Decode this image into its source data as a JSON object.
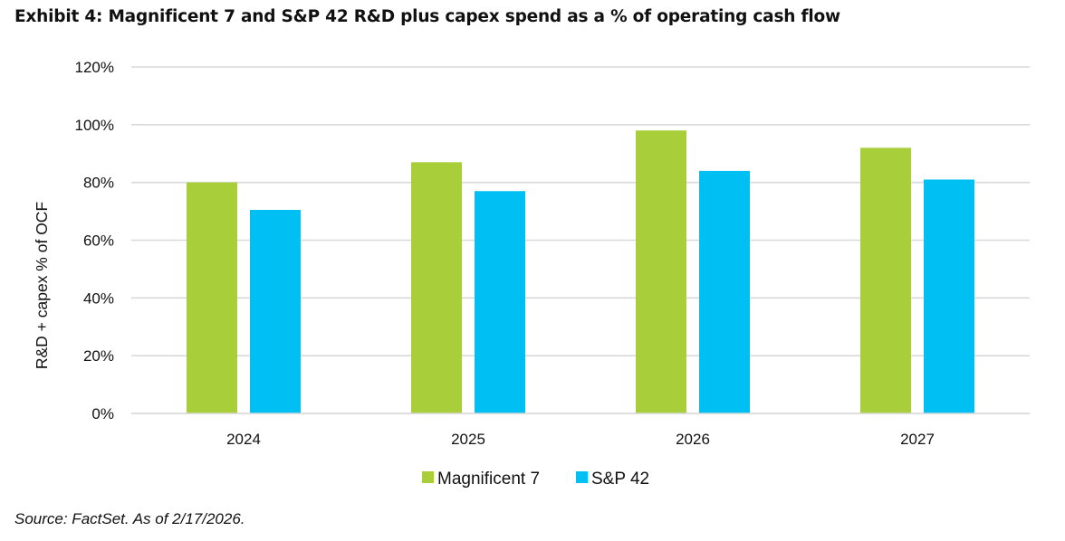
{
  "chart_data": {
    "type": "bar",
    "title": "Exhibit 4: Magnificent 7 and S&P 42 R&D plus capex spend as a % of operating cash flow",
    "categories": [
      "2024",
      "2025",
      "2026",
      "2027"
    ],
    "series": [
      {
        "name": "Magnificent 7",
        "color": "#A8CE3A",
        "values": [
          80,
          87,
          98,
          92
        ]
      },
      {
        "name": "S&P 42",
        "color": "#00BFF3",
        "values": [
          70.5,
          77,
          84,
          81
        ]
      }
    ],
    "xlabel": "",
    "ylabel": "R&D + capex % of OCF",
    "ylim": [
      0,
      120
    ],
    "yticks": [
      0,
      20,
      40,
      60,
      80,
      100,
      120
    ],
    "ytick_labels": [
      "0%",
      "20%",
      "40%",
      "60%",
      "80%",
      "100%",
      "120%"
    ],
    "grid": true,
    "gridline_color": "#D9D9D9",
    "legend_position": "bottom-center",
    "source": "Source: FactSet. As of 2/17/2026."
  }
}
